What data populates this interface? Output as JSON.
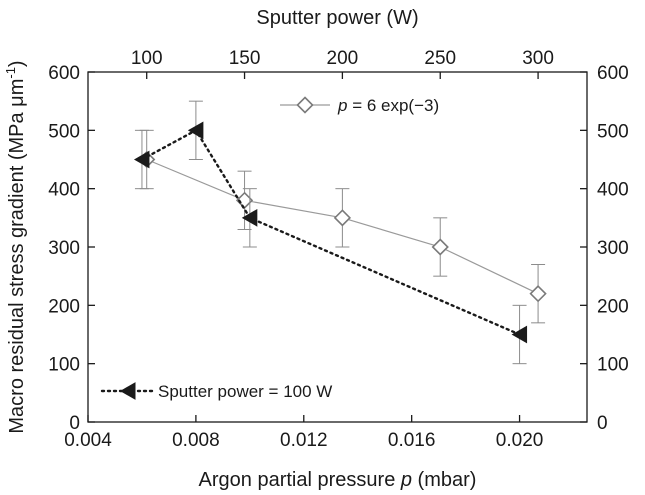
{
  "chart_data": {
    "type": "line",
    "xlabel": "Argon partial pressure p (mbar)",
    "xlabel_parts": [
      "Argon partial pressure ",
      "p",
      " (mbar)"
    ],
    "x2label": "Sputter power (W)",
    "ylabel": "Macro residual stress gradient (MPa μm-1)",
    "ylabel_parts": [
      "Macro residual stress gradient (MPa  μm",
      "-1",
      ")"
    ],
    "xlim": [
      0.004,
      0.0225
    ],
    "ylim": [
      0,
      600
    ],
    "x2lim": [
      70,
      325
    ],
    "x_ticks": [
      0.004,
      0.008,
      0.012,
      0.016,
      0.02
    ],
    "x_tick_labels": [
      "0.004",
      "0.008",
      "0.012",
      "0.016",
      "0.020"
    ],
    "x2_ticks": [
      100,
      150,
      200,
      250,
      300
    ],
    "x2_tick_labels": [
      "100",
      "150",
      "200",
      "250",
      "300"
    ],
    "y_ticks": [
      0,
      100,
      200,
      300,
      400,
      500,
      600
    ],
    "y_tick_labels": [
      "0",
      "100",
      "200",
      "300",
      "400",
      "500",
      "600"
    ],
    "grid": false,
    "series": [
      {
        "name": "p = 6 exp(−3)",
        "name_parts": [
          "p",
          " = 6 exp(−3)"
        ],
        "axis": "top",
        "x_unit": "Sputter power (W)",
        "marker": "open-diamond",
        "line": "solid",
        "color": "#8c8c8c",
        "points": [
          {
            "x": 100,
            "y": 450,
            "err": 50
          },
          {
            "x": 150,
            "y": 380,
            "err": 50
          },
          {
            "x": 200,
            "y": 350,
            "err": 50
          },
          {
            "x": 250,
            "y": 300,
            "err": 50
          },
          {
            "x": 300,
            "y": 220,
            "err": 50
          }
        ]
      },
      {
        "name": "Sputter power = 100 W",
        "axis": "bottom",
        "x_unit": "Argon partial pressure p (mbar)",
        "marker": "filled-left-triangle",
        "line": "dotted",
        "color": "#1a1a1a",
        "points": [
          {
            "x": 0.006,
            "y": 450,
            "err": 50
          },
          {
            "x": 0.008,
            "y": 500,
            "err": 50
          },
          {
            "x": 0.01,
            "y": 350,
            "err": 50
          },
          {
            "x": 0.02,
            "y": 150,
            "err": 50
          }
        ]
      }
    ],
    "legend": {
      "series_0_location": "top-right",
      "series_1_location": "bottom-left"
    }
  }
}
